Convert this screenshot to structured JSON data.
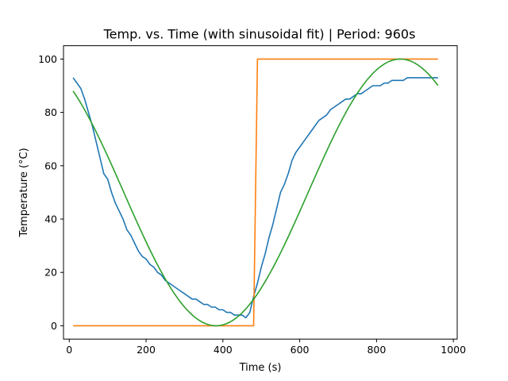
{
  "chart_data": {
    "type": "line",
    "title": "Temp. vs. Time (with sinusoidal fit) | Period: 960s",
    "xlabel": "Time (s)",
    "ylabel": "Temperature (°C)",
    "xlim": [
      -15,
      1010
    ],
    "ylim": [
      -5,
      105
    ],
    "xticks": [
      0,
      200,
      400,
      600,
      800,
      1000
    ],
    "yticks": [
      0,
      20,
      40,
      60,
      80,
      100
    ],
    "xtick_labels": [
      "0",
      "200",
      "400",
      "600",
      "800",
      "1000"
    ],
    "ytick_labels": [
      "0",
      "20",
      "40",
      "60",
      "80",
      "100"
    ],
    "grid": false,
    "series": [
      {
        "color": "#1f77b4",
        "x": [
          10,
          20,
          30,
          40,
          50,
          60,
          70,
          80,
          90,
          100,
          110,
          120,
          130,
          140,
          150,
          160,
          170,
          180,
          190,
          200,
          210,
          220,
          230,
          240,
          250,
          260,
          270,
          280,
          290,
          300,
          310,
          320,
          330,
          340,
          350,
          360,
          370,
          380,
          390,
          400,
          410,
          420,
          430,
          440,
          450,
          460,
          470,
          480,
          490,
          500,
          510,
          520,
          530,
          540,
          550,
          560,
          570,
          580,
          590,
          600,
          610,
          620,
          630,
          640,
          650,
          660,
          670,
          680,
          690,
          700,
          710,
          720,
          730,
          740,
          750,
          760,
          770,
          780,
          790,
          800,
          810,
          820,
          830,
          840,
          850,
          860,
          870,
          880,
          890,
          900,
          910,
          920,
          930,
          940,
          950,
          960
        ],
        "y": [
          93,
          91,
          89,
          85,
          80,
          75,
          69,
          63,
          57,
          55,
          50,
          46,
          43,
          40,
          36,
          34,
          31,
          28,
          26,
          25,
          23,
          22,
          20,
          19,
          17,
          16,
          15,
          14,
          13,
          12,
          11,
          10,
          10,
          9,
          8,
          8,
          7,
          7,
          6,
          6,
          5,
          5,
          4,
          4,
          4,
          3,
          5,
          11,
          16,
          22,
          27,
          33,
          38,
          44,
          50,
          53,
          57,
          62,
          65,
          67,
          69,
          71,
          73,
          75,
          77,
          78,
          79,
          81,
          82,
          83,
          84,
          85,
          85,
          86,
          87,
          87,
          88,
          89,
          90,
          90,
          90,
          91,
          91,
          92,
          92,
          92,
          92,
          93,
          93,
          93,
          93,
          93,
          93,
          93,
          93,
          93
        ]
      },
      {
        "color": "#ff7f0e",
        "x": [
          10,
          480,
          490,
          960
        ],
        "y": [
          0,
          0,
          100,
          100
        ]
      },
      {
        "color": "#2ca02c",
        "fit": {
          "amplitude": 50,
          "offset": 50,
          "period": 960,
          "peak_at": 862
        },
        "x_range": [
          10,
          960
        ]
      }
    ]
  }
}
